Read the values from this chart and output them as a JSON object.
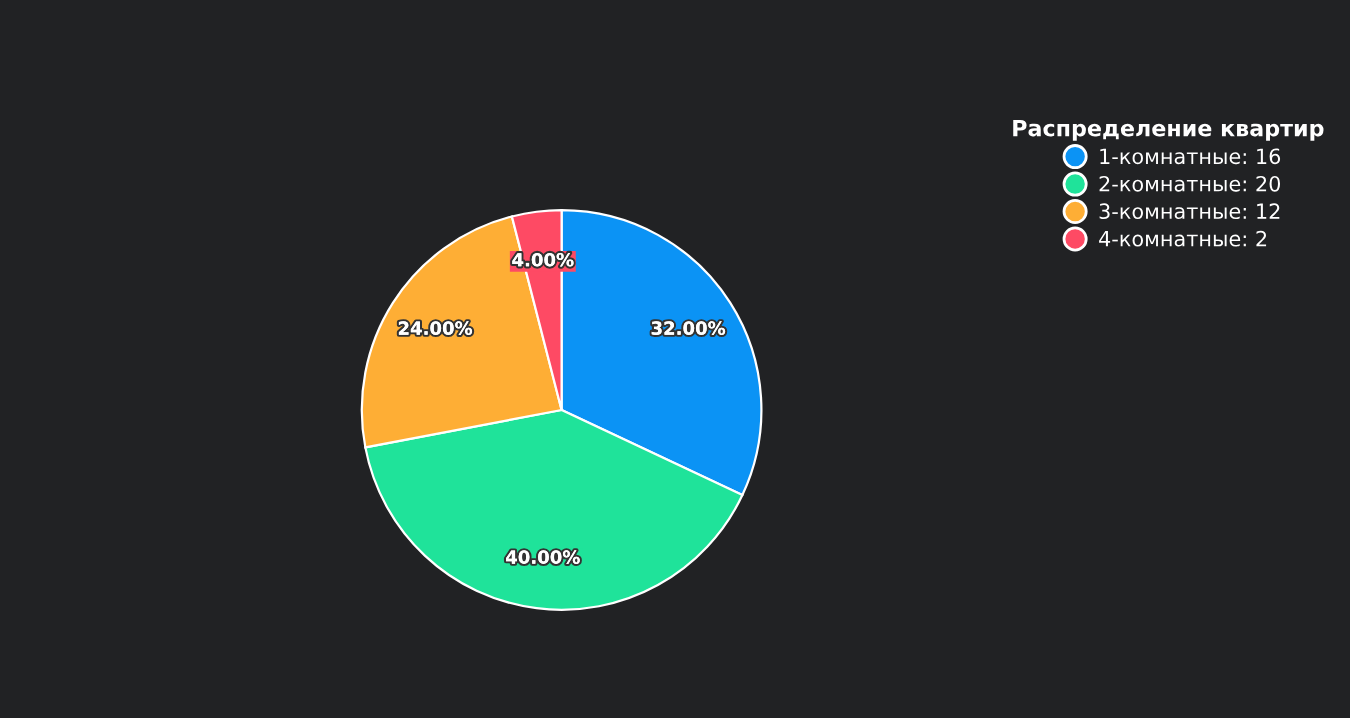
{
  "chart_data": {
    "type": "pie",
    "legend_title": "Распределение квартир",
    "legend": "top right",
    "categories": [
      "1-комнатные: 16",
      "2-комнатные: 20",
      "3-комнатные: 12",
      "4-комнатные: 2"
    ],
    "values": [
      32,
      40,
      24,
      4
    ],
    "colors": [
      "#0b93f5",
      "#1fe39a",
      "#feae35",
      "#fe4a64"
    ],
    "value_labels": [
      "32.00%",
      "40.00%",
      "24.00%",
      "4.00%"
    ]
  }
}
